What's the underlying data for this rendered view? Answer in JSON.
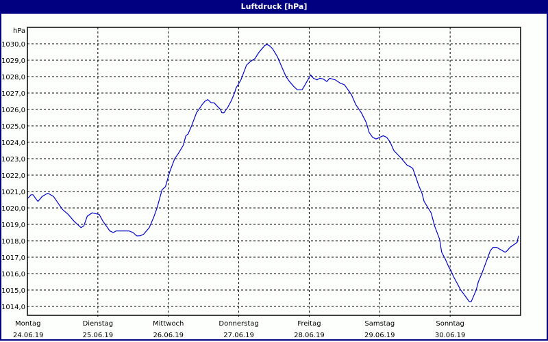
{
  "window": {
    "title": "Luftdruck [hPa]"
  },
  "colors": {
    "titlebar": "#000080",
    "line": "#0000cc",
    "grid": "#000000",
    "background": "#fcfffc"
  },
  "chart_data": {
    "type": "line",
    "title": "Luftdruck [hPa]",
    "ylabel": "hPa",
    "xlabel": "",
    "ylim": [
      1013.5,
      1031.0
    ],
    "yticks": [
      "1014,0",
      "1015,0",
      "1016,0",
      "1017,0",
      "1018,0",
      "1019,0",
      "1020,0",
      "1021,0",
      "1022,0",
      "1023,0",
      "1024,0",
      "1025,0",
      "1026,0",
      "1027,0",
      "1028,0",
      "1029,0",
      "1030,0"
    ],
    "ytick_values": [
      1014,
      1015,
      1016,
      1017,
      1018,
      1019,
      1020,
      1021,
      1022,
      1023,
      1024,
      1025,
      1026,
      1027,
      1028,
      1029,
      1030
    ],
    "xticks": [
      {
        "day": "Montag",
        "date": "24.06.19"
      },
      {
        "day": "Dienstag",
        "date": "25.06.19"
      },
      {
        "day": "Mittwoch",
        "date": "26.06.19"
      },
      {
        "day": "Donnerstag",
        "date": "27.06.19"
      },
      {
        "day": "Freitag",
        "date": "28.06.19"
      },
      {
        "day": "Samstag",
        "date": "29.06.19"
      },
      {
        "day": "Sonntag",
        "date": "30.06.19"
      }
    ],
    "grid": true,
    "legend": "none",
    "series": [
      {
        "name": "Luftdruck",
        "x_days": [
          0.01,
          0.05,
          0.08,
          0.13,
          0.15,
          0.21,
          0.29,
          0.37,
          0.45,
          0.5,
          0.58,
          0.66,
          0.76,
          0.8,
          0.85,
          0.92,
          1.02,
          1.07,
          1.17,
          1.22,
          1.26,
          1.36,
          1.44,
          1.5,
          1.55,
          1.6,
          1.65,
          1.73,
          1.79,
          1.84,
          1.91,
          1.96,
          2.02,
          2.09,
          2.14,
          2.21,
          2.25,
          2.28,
          2.33,
          2.4,
          2.45,
          2.48,
          2.52,
          2.56,
          2.61,
          2.65,
          2.74,
          2.76,
          2.79,
          2.84,
          2.89,
          2.94,
          2.96,
          2.99,
          3.03,
          3.11,
          3.16,
          3.23,
          3.29,
          3.35,
          3.37,
          3.4,
          3.43,
          3.48,
          3.55,
          3.62,
          3.67,
          3.72,
          3.78,
          3.83,
          3.9,
          3.94,
          3.98,
          4.02,
          4.06,
          4.11,
          4.15,
          4.2,
          4.25,
          4.29,
          4.37,
          4.44,
          4.5,
          4.6,
          4.66,
          4.74,
          4.81,
          4.85,
          4.9,
          4.95,
          5.0,
          5.05,
          5.1,
          5.15,
          5.2,
          5.29,
          5.33,
          5.39,
          5.44,
          5.47,
          5.52,
          5.55,
          5.6,
          5.63,
          5.73,
          5.78,
          5.85,
          5.88,
          5.93,
          5.98,
          6.01,
          6.05,
          6.1,
          6.15,
          6.22,
          6.27,
          6.3,
          6.34,
          6.37,
          6.4,
          6.45,
          6.51,
          6.57,
          6.61,
          6.66,
          6.74,
          6.78,
          6.81,
          6.85,
          6.95,
          6.97
        ],
        "values": [
          1020.6,
          1020.8,
          1020.8,
          1020.5,
          1020.4,
          1020.7,
          1020.9,
          1020.7,
          1020.2,
          1019.9,
          1019.6,
          1019.2,
          1018.8,
          1018.9,
          1019.5,
          1019.7,
          1019.6,
          1019.2,
          1018.6,
          1018.5,
          1018.6,
          1018.6,
          1018.6,
          1018.5,
          1018.3,
          1018.3,
          1018.4,
          1018.8,
          1019.4,
          1020.0,
          1021.1,
          1021.3,
          1022.2,
          1023.0,
          1023.3,
          1023.8,
          1024.4,
          1024.5,
          1025.0,
          1025.8,
          1026.1,
          1026.3,
          1026.5,
          1026.6,
          1026.4,
          1026.4,
          1026.0,
          1025.8,
          1025.8,
          1026.1,
          1026.5,
          1027.0,
          1027.3,
          1027.5,
          1027.8,
          1028.7,
          1028.9,
          1029.1,
          1029.5,
          1029.8,
          1029.9,
          1029.95,
          1029.9,
          1029.7,
          1029.2,
          1028.5,
          1028.0,
          1027.7,
          1027.4,
          1027.2,
          1027.2,
          1027.5,
          1027.8,
          1028.1,
          1027.9,
          1027.8,
          1027.9,
          1027.85,
          1027.7,
          1027.9,
          1027.8,
          1027.6,
          1027.5,
          1026.9,
          1026.3,
          1025.8,
          1025.2,
          1024.6,
          1024.3,
          1024.2,
          1024.3,
          1024.4,
          1024.3,
          1024.0,
          1023.5,
          1023.1,
          1022.9,
          1022.6,
          1022.5,
          1022.4,
          1021.8,
          1021.4,
          1020.9,
          1020.4,
          1019.7,
          1018.9,
          1018.1,
          1017.3,
          1016.9,
          1016.4,
          1016.2,
          1015.8,
          1015.4,
          1015.0,
          1014.6,
          1014.3,
          1014.3,
          1014.7,
          1015.0,
          1015.5,
          1016.0,
          1016.7,
          1017.4,
          1017.6,
          1017.6,
          1017.4,
          1017.3,
          1017.4,
          1017.6,
          1017.9,
          1018.3
        ]
      }
    ]
  }
}
